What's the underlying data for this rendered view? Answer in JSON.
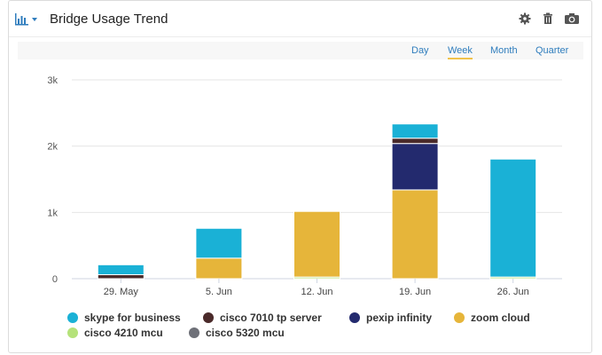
{
  "header": {
    "title": "Bridge Usage Trend",
    "icons": [
      "bar-chart-icon",
      "chevron-down-icon",
      "gear-icon",
      "trash-icon",
      "camera-icon"
    ]
  },
  "toolbar": {
    "tabs": [
      {
        "label": "Day",
        "active": false
      },
      {
        "label": "Week",
        "active": true
      },
      {
        "label": "Month",
        "active": false
      },
      {
        "label": "Quarter",
        "active": false
      }
    ]
  },
  "colors": {
    "accent": "#2f7dbd",
    "active_tab_underline": "#f0c24b",
    "gridline": "#e6e6e6"
  },
  "chart_data": {
    "type": "bar",
    "stacked": true,
    "title": "",
    "xlabel": "",
    "ylabel": "",
    "categories": [
      "29. May",
      "5. Jun",
      "12. Jun",
      "19. Jun",
      "26. Jun"
    ],
    "y_ticks": [
      "0",
      "1k",
      "2k",
      "3k"
    ],
    "ylim": [
      0,
      3000
    ],
    "grid": true,
    "legend_position": "bottom",
    "series": [
      {
        "name": "cisco 5320 mcu",
        "color": "#6e7078",
        "values": [
          0,
          0,
          0,
          0,
          0
        ]
      },
      {
        "name": "cisco 4210 mcu",
        "color": "#b5e27a",
        "values": [
          0,
          0,
          25,
          0,
          25
        ]
      },
      {
        "name": "zoom cloud",
        "color": "#e6b53a",
        "values": [
          0,
          310,
          990,
          1340,
          0
        ]
      },
      {
        "name": "pexip infinity",
        "color": "#232a6e",
        "values": [
          0,
          0,
          0,
          700,
          0
        ]
      },
      {
        "name": "cisco 7010 tp server",
        "color": "#4a2a2a",
        "values": [
          60,
          0,
          0,
          80,
          0
        ]
      },
      {
        "name": "skype for business",
        "color": "#1ab1d6",
        "values": [
          150,
          450,
          0,
          215,
          1780
        ]
      }
    ],
    "legend": [
      {
        "name": "skype for business",
        "color": "#1ab1d6"
      },
      {
        "name": "cisco 7010 tp server",
        "color": "#4a2a2a"
      },
      {
        "name": "pexip infinity",
        "color": "#232a6e"
      },
      {
        "name": "zoom cloud",
        "color": "#e6b53a"
      },
      {
        "name": "cisco 4210 mcu",
        "color": "#b5e27a"
      },
      {
        "name": "cisco 5320 mcu",
        "color": "#6e7078"
      }
    ]
  }
}
